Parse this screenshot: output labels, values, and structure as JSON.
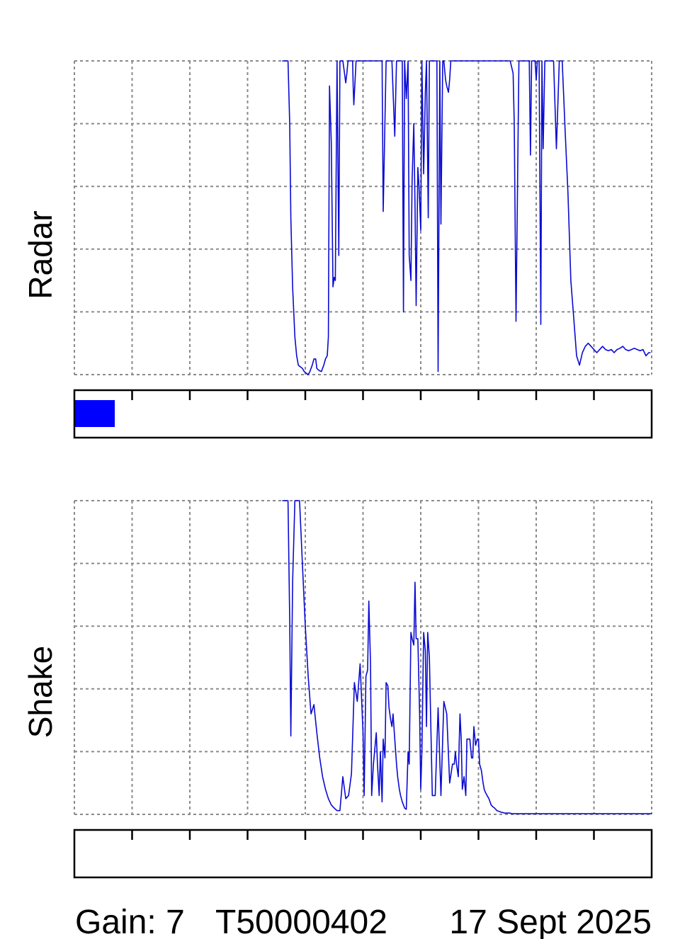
{
  "panels": [
    {
      "label": "Radar",
      "indicator_fill": 0.07,
      "indicator_color": "#0000ff"
    },
    {
      "label": "Shake",
      "indicator_fill": 0,
      "indicator_color": "#0000ff"
    }
  ],
  "footer": {
    "gain": "Gain: 7",
    "id": "T50000402",
    "date": "17 Sept 2025"
  },
  "chart_data": [
    {
      "type": "line",
      "title": "",
      "ylabel": "Radar",
      "xlabel": "",
      "grid": true,
      "trace_color": "#0a0ad2",
      "xlim": [
        0,
        10
      ],
      "ylim": [
        0,
        5
      ],
      "series": [
        {
          "x": [
            3.6,
            3.7,
            3.73,
            3.75,
            3.78,
            3.82,
            3.85,
            3.88,
            3.92,
            3.95,
            3.98,
            4.02,
            4.05,
            4.08,
            4.12,
            4.15,
            4.18,
            4.2,
            4.22,
            4.25,
            4.28,
            4.3,
            4.32,
            4.35,
            4.38,
            4.4,
            4.42,
            4.45,
            4.48,
            4.5,
            4.52,
            4.55,
            4.58,
            4.6,
            4.63,
            4.65,
            4.68,
            4.7,
            4.72,
            4.74,
            4.76,
            4.78,
            4.8,
            4.82,
            4.83,
            4.84,
            4.86,
            4.88,
            4.9,
            4.92,
            4.95,
            5.0,
            5.05,
            5.1,
            5.12,
            5.15,
            5.2,
            5.25,
            5.3,
            5.33,
            5.35,
            5.4,
            5.45,
            5.5,
            5.55,
            5.58,
            5.6,
            5.63,
            5.66,
            5.68,
            5.7,
            5.72,
            5.75,
            5.78,
            5.8,
            5.83,
            5.85,
            5.88,
            5.9,
            5.92,
            5.95,
            5.97,
            6.0,
            6.02,
            6.05,
            6.08,
            6.1,
            6.13,
            6.15,
            6.18,
            6.2,
            6.22,
            6.25,
            6.28,
            6.3,
            6.33,
            6.35,
            6.38,
            6.4,
            6.43,
            6.45,
            6.48,
            6.5,
            6.52,
            6.55,
            6.58,
            6.6,
            6.63,
            6.65,
            6.68,
            6.7,
            6.73,
            6.75,
            6.78,
            6.8,
            6.85,
            6.9,
            6.95,
            7.0,
            7.05,
            7.1,
            7.15,
            7.2,
            7.25,
            7.3,
            7.35,
            7.4,
            7.45,
            7.5,
            7.55,
            7.6,
            7.62,
            7.65,
            7.7,
            7.75,
            7.8,
            7.82,
            7.85,
            7.88,
            7.9,
            7.92,
            7.95,
            7.98,
            8.0,
            8.02,
            8.05,
            8.08,
            8.1,
            8.12,
            8.15,
            8.18,
            8.2,
            8.25,
            8.3,
            8.35,
            8.4,
            8.45,
            8.5,
            8.55,
            8.6,
            8.65,
            8.7,
            8.75,
            8.8,
            8.85,
            8.9,
            8.95,
            9.0,
            9.05,
            9.1,
            9.15,
            9.2,
            9.25,
            9.3,
            9.35,
            9.4,
            9.45,
            9.5,
            9.55,
            9.6,
            9.65,
            9.7,
            9.75,
            9.8,
            9.85,
            9.9,
            9.95,
            9.98
          ],
          "y": [
            5.0,
            5.0,
            4.0,
            2.5,
            1.4,
            0.6,
            0.3,
            0.15,
            0.12,
            0.1,
            0.05,
            0.02,
            0.0,
            0.05,
            0.15,
            0.25,
            0.25,
            0.1,
            0.08,
            0.06,
            0.05,
            0.1,
            0.15,
            0.25,
            0.3,
            0.6,
            4.6,
            3.7,
            1.4,
            1.55,
            1.5,
            5.0,
            1.9,
            5.0,
            5.0,
            5.0,
            4.8,
            4.65,
            4.8,
            5.0,
            5.0,
            5.0,
            5.0,
            5.0,
            4.6,
            4.3,
            4.65,
            5.0,
            5.0,
            5.0,
            5.0,
            5.0,
            5.0,
            5.0,
            5.0,
            5.0,
            5.0,
            5.0,
            5.0,
            5.0,
            2.6,
            5.0,
            5.0,
            5.0,
            3.8,
            5.0,
            5.0,
            5.0,
            5.0,
            5.0,
            1.0,
            5.0,
            4.4,
            5.0,
            1.9,
            1.5,
            3.1,
            4.0,
            2.7,
            1.1,
            3.3,
            3.0,
            2.3,
            5.0,
            3.2,
            4.5,
            5.0,
            2.5,
            5.0,
            5.0,
            5.0,
            5.0,
            5.0,
            5.0,
            0.05,
            5.0,
            2.4,
            5.0,
            5.0,
            4.7,
            4.6,
            4.5,
            4.7,
            5.0,
            5.0,
            5.0,
            5.0,
            5.0,
            5.0,
            5.0,
            5.0,
            5.0,
            5.0,
            5.0,
            5.0,
            5.0,
            5.0,
            5.0,
            5.0,
            5.0,
            5.0,
            5.0,
            5.0,
            5.0,
            5.0,
            5.0,
            5.0,
            5.0,
            5.0,
            5.0,
            4.8,
            4.0,
            0.85,
            5.0,
            5.0,
            5.0,
            5.0,
            5.0,
            5.0,
            3.5,
            5.0,
            5.0,
            5.0,
            4.7,
            5.0,
            5.0,
            0.8,
            5.0,
            3.6,
            5.0,
            5.0,
            5.0,
            5.0,
            5.0,
            3.6,
            5.0,
            5.0,
            3.9,
            2.9,
            1.5,
            0.9,
            0.3,
            0.15,
            0.35,
            0.45,
            0.5,
            0.45,
            0.4,
            0.35,
            0.4,
            0.45,
            0.4,
            0.38,
            0.4,
            0.35,
            0.4,
            0.42,
            0.45,
            0.4,
            0.38,
            0.4,
            0.42,
            0.4,
            0.38,
            0.4,
            0.3,
            0.35,
            0.35
          ]
        }
      ]
    },
    {
      "type": "line",
      "title": "",
      "ylabel": "Shake",
      "xlabel": "",
      "grid": true,
      "trace_color": "#0a0ad2",
      "xlim": [
        0,
        10
      ],
      "ylim": [
        0,
        5
      ],
      "series": [
        {
          "x": [
            3.6,
            3.7,
            3.73,
            3.75,
            3.78,
            3.82,
            3.85,
            3.9,
            3.95,
            4.0,
            4.05,
            4.1,
            4.15,
            4.2,
            4.25,
            4.3,
            4.35,
            4.4,
            4.45,
            4.5,
            4.55,
            4.6,
            4.65,
            4.7,
            4.75,
            4.8,
            4.85,
            4.9,
            4.95,
            5.0,
            5.02,
            5.05,
            5.08,
            5.1,
            5.13,
            5.15,
            5.18,
            5.2,
            5.23,
            5.25,
            5.28,
            5.3,
            5.33,
            5.35,
            5.38,
            5.4,
            5.43,
            5.45,
            5.48,
            5.5,
            5.52,
            5.55,
            5.58,
            5.6,
            5.63,
            5.65,
            5.68,
            5.7,
            5.72,
            5.75,
            5.78,
            5.8,
            5.83,
            5.85,
            5.88,
            5.9,
            5.92,
            5.95,
            5.98,
            6.0,
            6.02,
            6.05,
            6.08,
            6.1,
            6.12,
            6.15,
            6.2,
            6.25,
            6.3,
            6.35,
            6.4,
            6.45,
            6.5,
            6.55,
            6.58,
            6.6,
            6.62,
            6.65,
            6.68,
            6.7,
            6.72,
            6.75,
            6.78,
            6.8,
            6.82,
            6.85,
            6.88,
            6.9,
            6.92,
            6.95,
            6.98,
            7.0,
            7.02,
            7.05,
            7.08,
            7.1,
            7.12,
            7.15,
            7.18,
            7.2,
            7.22,
            7.25,
            7.28,
            7.3,
            7.32,
            7.35,
            7.38,
            7.4,
            7.42,
            7.45,
            7.48,
            7.5,
            7.52,
            7.55,
            7.58,
            7.6,
            7.63,
            7.65,
            7.7,
            7.75,
            7.8,
            7.85,
            7.9,
            7.95,
            8.0,
            8.05,
            8.1,
            8.15,
            8.2,
            8.25,
            8.3,
            8.35,
            8.4,
            8.45,
            8.5,
            8.55,
            8.6,
            8.65,
            8.7,
            8.75,
            8.8,
            8.85,
            8.9,
            8.95,
            9.0,
            9.1,
            9.2,
            9.3,
            9.4,
            9.5,
            9.6,
            9.7,
            9.8,
            9.9,
            10.0
          ],
          "y": [
            5.0,
            5.0,
            3.1,
            1.25,
            3.7,
            5.0,
            5.0,
            5.0,
            4.0,
            3.0,
            2.2,
            1.6,
            1.75,
            1.3,
            0.9,
            0.6,
            0.4,
            0.25,
            0.15,
            0.1,
            0.06,
            0.06,
            0.6,
            0.25,
            0.3,
            0.65,
            2.1,
            1.8,
            2.4,
            1.3,
            0.3,
            2.2,
            2.3,
            3.4,
            2.4,
            0.3,
            0.8,
            1.0,
            1.3,
            0.8,
            0.3,
            1.0,
            0.2,
            1.2,
            0.9,
            2.1,
            2.05,
            1.7,
            1.5,
            1.4,
            1.6,
            1.2,
            0.8,
            0.6,
            0.4,
            0.3,
            0.2,
            0.15,
            0.1,
            0.08,
            1.0,
            0.8,
            2.9,
            2.8,
            2.7,
            3.7,
            2.8,
            2.8,
            1.6,
            0.4,
            1.0,
            2.9,
            2.6,
            1.4,
            2.9,
            2.5,
            0.3,
            0.3,
            1.7,
            0.3,
            1.8,
            1.6,
            0.5,
            0.8,
            0.8,
            1.0,
            0.8,
            0.6,
            1.6,
            1.2,
            0.4,
            0.6,
            0.3,
            1.2,
            1.2,
            1.2,
            0.9,
            0.9,
            1.4,
            1.1,
            1.2,
            1.2,
            0.8,
            0.7,
            0.5,
            0.4,
            0.35,
            0.3,
            0.25,
            0.2,
            0.15,
            0.12,
            0.1,
            0.08,
            0.06,
            0.05,
            0.04,
            0.03,
            0.03,
            0.02,
            0.02,
            0.02,
            0.02,
            0.02,
            0.01,
            0.01,
            0.01,
            0.01,
            0.01,
            0.01,
            0.01,
            0.01,
            0.01,
            0.01,
            0.01,
            0.01,
            0.01,
            0.01,
            0.01,
            0.01,
            0.01,
            0.01,
            0.01,
            0.01,
            0.01,
            0.01,
            0.01,
            0.01,
            0.01,
            0.01,
            0.01,
            0.01,
            0.01,
            0.01,
            0.01,
            0.01,
            0.01,
            0.01,
            0.01,
            0.01,
            0.01,
            0.01,
            0.01,
            0.01,
            0.01
          ]
        }
      ]
    }
  ]
}
